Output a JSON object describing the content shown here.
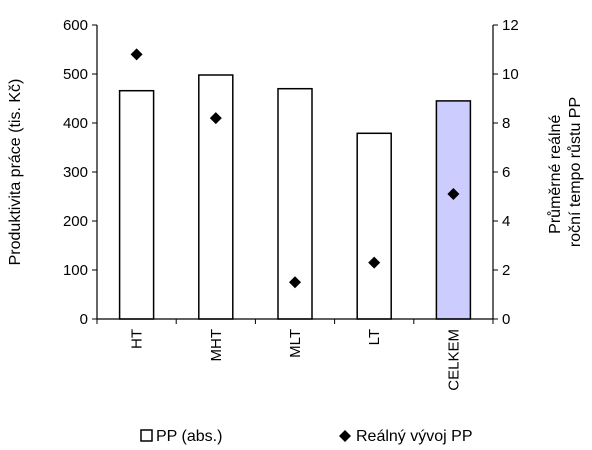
{
  "chart_data": {
    "type": "bar+scatter",
    "categories": [
      "HT",
      "MHT",
      "MLT",
      "LT",
      "CELKEM"
    ],
    "series": [
      {
        "name": "PP (abs.)",
        "kind": "bar",
        "axis": "left",
        "values": [
          466,
          498,
          470,
          379,
          445
        ],
        "highlight_index": 4,
        "color": "#ffffff",
        "highlight_color": "#ccccff"
      },
      {
        "name": "Reálný vývoj PP",
        "kind": "scatter",
        "axis": "right",
        "marker": "diamond",
        "values": [
          10.8,
          8.2,
          1.5,
          2.3,
          5.1
        ],
        "color": "#000000"
      }
    ],
    "ylabel_left": "Produktivita práce (tis. Kč)",
    "ylabel_right": [
      "Průměrné reálné",
      "roční tempo růstu PP"
    ],
    "ylim_left": [
      0,
      600
    ],
    "yticks_left": [
      "0",
      "100",
      "200",
      "300",
      "400",
      "500",
      "600"
    ],
    "ylim_right": [
      0,
      12
    ],
    "yticks_right": [
      "0",
      "2",
      "4",
      "6",
      "8",
      "10",
      "12"
    ],
    "grid": false,
    "legend_position": "bottom"
  }
}
